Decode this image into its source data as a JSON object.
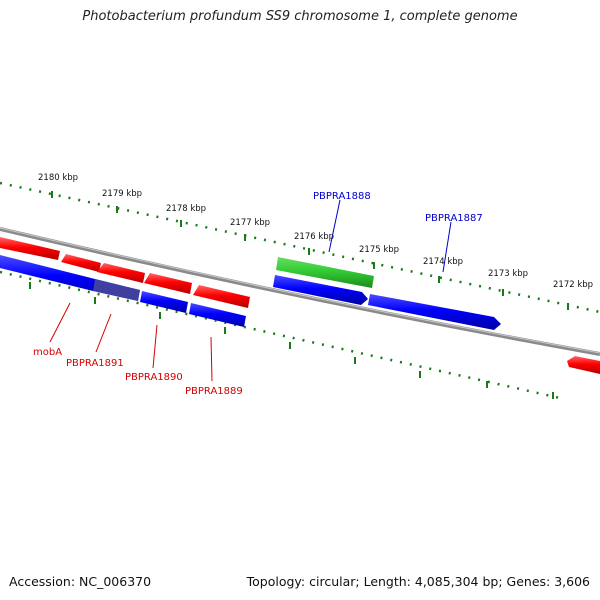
{
  "title": "Photobacterium profundum SS9 chromosome 1, complete genome",
  "accession": "Accession: NC_006370",
  "summary": "Topology: circular; Length: 4,085,304 bp; Genes: 3,606",
  "tick_labels": [
    "2180 kbp",
    "2179 kbp",
    "2178 kbp",
    "2177 kbp",
    "2176 kbp",
    "2175 kbp",
    "2174 kbp",
    "2173 kbp",
    "2172 kbp"
  ],
  "gene_labels": {
    "mobA": "mobA",
    "PBPRA1891": "PBPRA1891",
    "PBPRA1890": "PBPRA1890",
    "PBPRA1889": "PBPRA1889",
    "PBPRA1888": "PBPRA1888",
    "PBPRA1887": "PBPRA1887"
  },
  "colors": {
    "forward_gene": "#ff0000",
    "reverse_gene": "#0000ff",
    "rna_gene": "#33cc33",
    "backbone": "#808080",
    "ticks": "#1a7a1a",
    "label_forward": "#d40000",
    "label_reverse": "#0000cc"
  }
}
